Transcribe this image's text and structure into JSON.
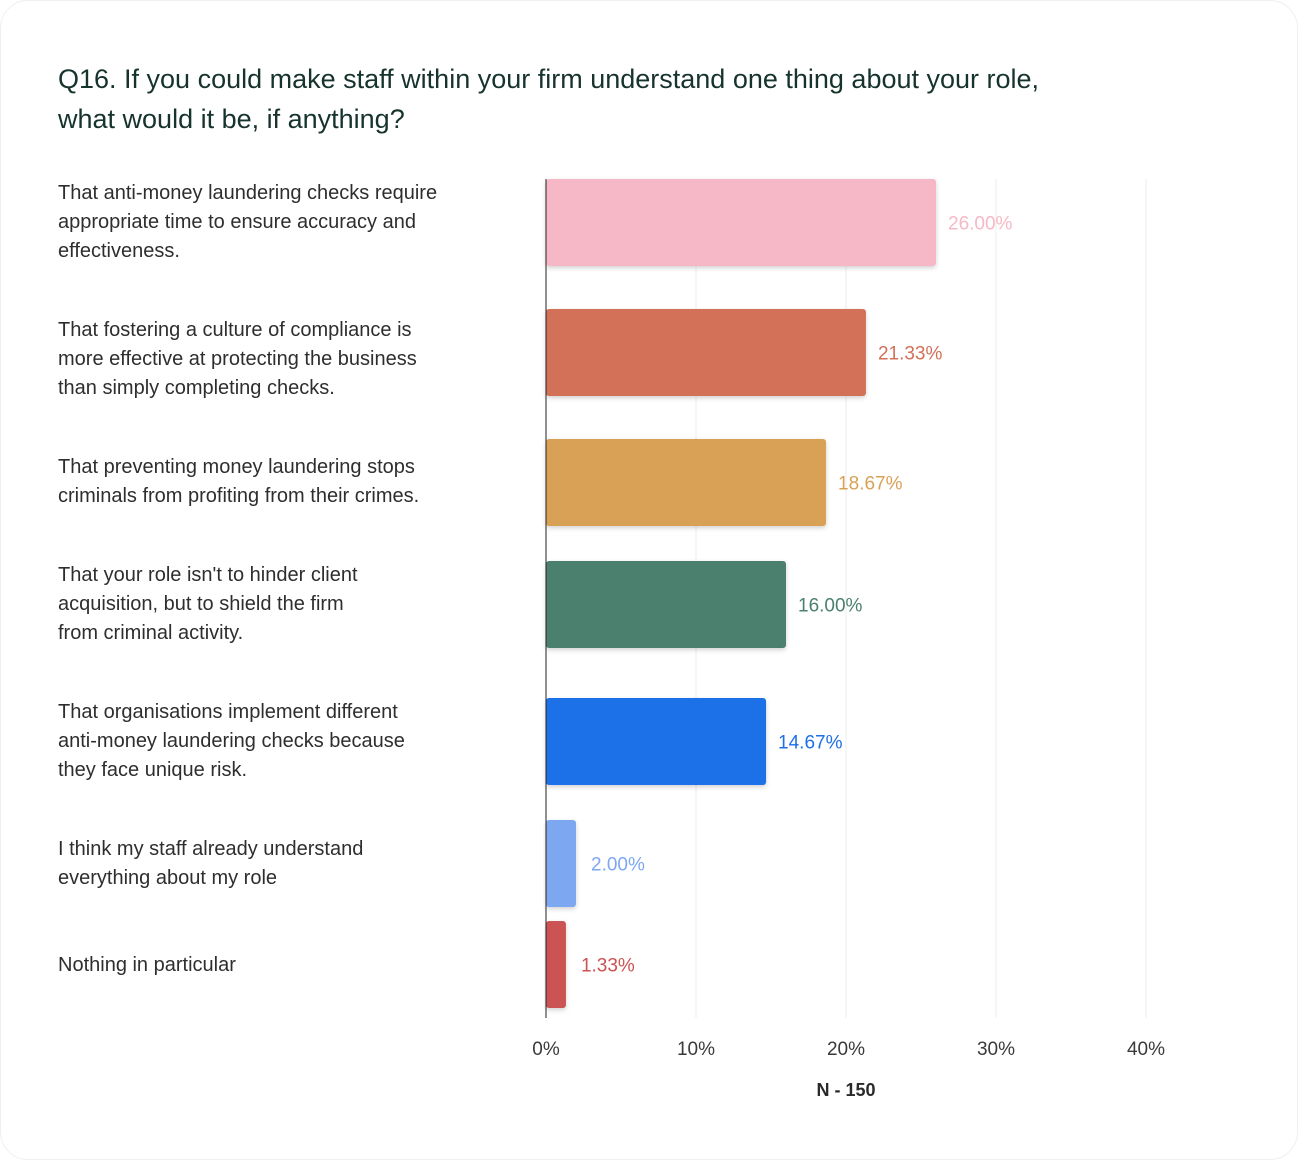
{
  "chart_data": {
    "type": "bar",
    "orientation": "horizontal",
    "title": "Q16. If you could make staff within your firm understand one thing about your role, what would it be, if anything?",
    "categories": [
      "That anti-money laundering checks require appropriate time to ensure accuracy and effectiveness.",
      "That fostering a culture of compliance is more effective at protecting the business than simply completing checks.",
      "That preventing money laundering stops criminals from profiting from their crimes.",
      "That your role isn't to hinder client acquisition, but to shield the firm from criminal activity.",
      "That organisations implement different anti-money laundering checks because they face unique risk.",
      "I think my staff already understand everything about my role",
      "Nothing in particular"
    ],
    "values": [
      26.0,
      21.33,
      18.67,
      16.0,
      14.67,
      2.0,
      1.33
    ],
    "value_labels": [
      "26.00%",
      "21.33%",
      "18.67%",
      "16.00%",
      "14.67%",
      "2.00%",
      "1.33%"
    ],
    "colors": [
      "#f6b8c6",
      "#d36f58",
      "#d9a157",
      "#4b806e",
      "#1e6fe8",
      "#7ea7f2",
      "#cc5252"
    ],
    "xlim": [
      0,
      40
    ],
    "xticks": [
      0,
      10,
      20,
      30,
      40
    ],
    "xtick_labels": [
      "0%",
      "10%",
      "20%",
      "30%",
      "40%"
    ],
    "xlabel": "N - 150",
    "grid": true
  }
}
